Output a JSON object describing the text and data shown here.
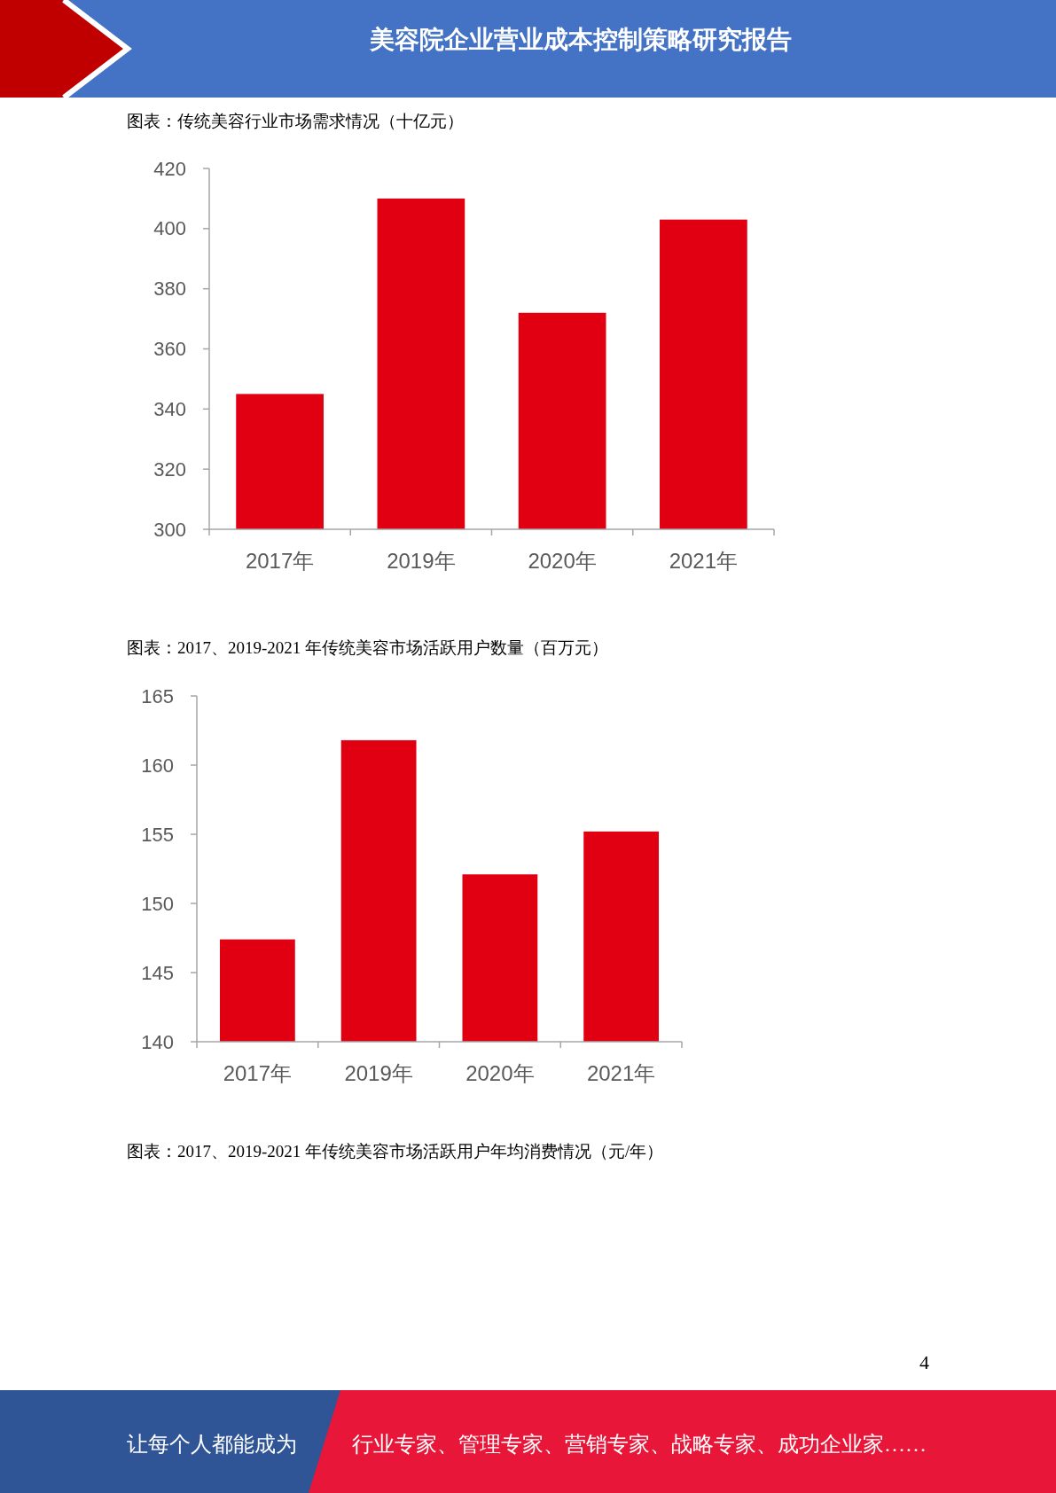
{
  "chart_data": [
    {
      "type": "bar",
      "title": "图表：传统美容行业市场需求情况（十亿元）",
      "categories": [
        "2017年",
        "2019年",
        "2020年",
        "2021年"
      ],
      "values": [
        345,
        410,
        372,
        403
      ],
      "color": "#e00012",
      "ylim": [
        300,
        420
      ],
      "yticks": [
        300,
        320,
        340,
        360,
        380,
        400,
        420
      ],
      "grid": false,
      "legend": false,
      "annotations": [
        "美容院企业营业成本控制策略研究报告"
      ]
    },
    {
      "type": "bar",
      "title": "图表：2017、2019-2021 年传统美容市场活跃用户数量（百万元）",
      "categories": [
        "2017年",
        "2019年",
        "2020年",
        "2021年"
      ],
      "values": [
        147.4,
        161.8,
        152.1,
        155.2
      ],
      "color": "#e00012",
      "ylim": [
        140,
        165
      ],
      "yticks": [
        140,
        145,
        150,
        155,
        160,
        165
      ],
      "grid": false,
      "legend": false,
      "annotations": [
        "图表：2017、2019-2021 年传统美容市场活跃用户年均消费情况（元/年）",
        "4",
        "让每个人都能成为",
        "行业专家、管理专家、营销专家、战略专家、成功企业家……"
      ]
    }
  ]
}
